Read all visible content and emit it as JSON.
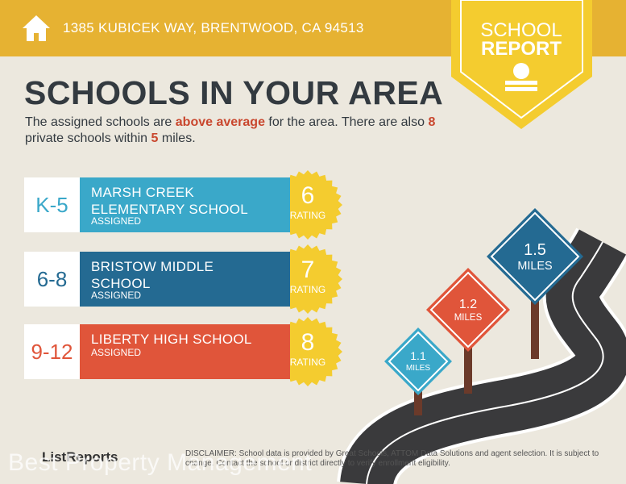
{
  "header": {
    "address": "1385 KUBICEK WAY, BRENTWOOD, CA 94513"
  },
  "badge": {
    "line1": "SCHOOL",
    "line2": "REPORT"
  },
  "title": "SCHOOLS IN YOUR AREA",
  "intro": {
    "part1": "The assigned schools are ",
    "highlight1": "above average",
    "part2": " for the area. There are also ",
    "private_count": "8",
    "part3": " private schools within ",
    "radius": "5",
    "part4": " miles."
  },
  "schools": [
    {
      "grade": "K-5",
      "name": "MARSH CREEK ELEMENTARY SCHOOL",
      "status": "ASSIGNED",
      "rating": "6",
      "rating_label": "RATING"
    },
    {
      "grade": "6-8",
      "name": "BRISTOW MIDDLE SCHOOL",
      "status": "ASSIGNED",
      "rating": "7",
      "rating_label": "RATING"
    },
    {
      "grade": "9-12",
      "name": "LIBERTY HIGH SCHOOL",
      "status": "ASSIGNED",
      "rating": "8",
      "rating_label": "RATING"
    }
  ],
  "signs": [
    {
      "distance": "1.1",
      "unit": "MILES"
    },
    {
      "distance": "1.2",
      "unit": "MILES"
    },
    {
      "distance": "1.5",
      "unit": "MILES"
    }
  ],
  "footer": {
    "brand": "ListReports",
    "disclaimer": "DISCLAIMER: School data is provided by Great Schools, ATTOM Data Solutions and agent selection. It is subject to change. Contact the school or district directly to verify enrollment eligibility."
  },
  "watermark": "Best Property Management"
}
